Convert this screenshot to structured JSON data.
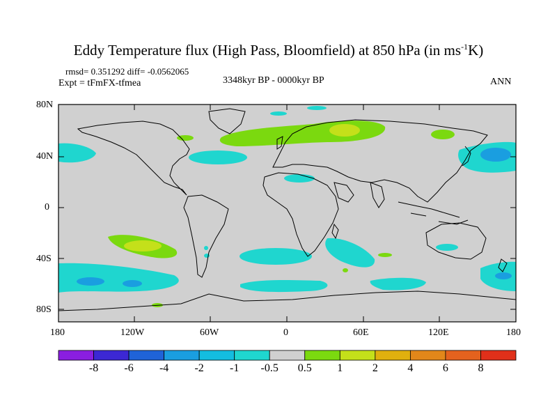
{
  "title": {
    "main": "Eddy Temperature flux (High Pass, Bloomfield) at 850 hPa (in ms",
    "sup": "-1",
    "tail": "K)"
  },
  "stats": "rmsd= 0.351292 diff= -0.0562065",
  "experiment": "Expt = tFmFX-tfmea",
  "period": "3348kyr BP - 0000kyr BP",
  "season": "ANN",
  "lat_ticks": [
    "80N",
    "40N",
    "0",
    "40S",
    "80S"
  ],
  "lon_ticks": [
    "180",
    "120W",
    "60W",
    "0",
    "60E",
    "120E",
    "180"
  ],
  "colorbar": {
    "labels": [
      "-8",
      "-6",
      "-4",
      "-2",
      "-1",
      "-0.5",
      "0.5",
      "1",
      "2",
      "4",
      "6",
      "8"
    ],
    "colors": [
      "#8a1ee0",
      "#3c28d4",
      "#1f63d8",
      "#1a9ee0",
      "#14bde0",
      "#1fd6cf",
      "#d0d0d0",
      "#7bd90f",
      "#c4e01a",
      "#e0b00e",
      "#e2871a",
      "#e4621e",
      "#e0301a"
    ]
  }
}
